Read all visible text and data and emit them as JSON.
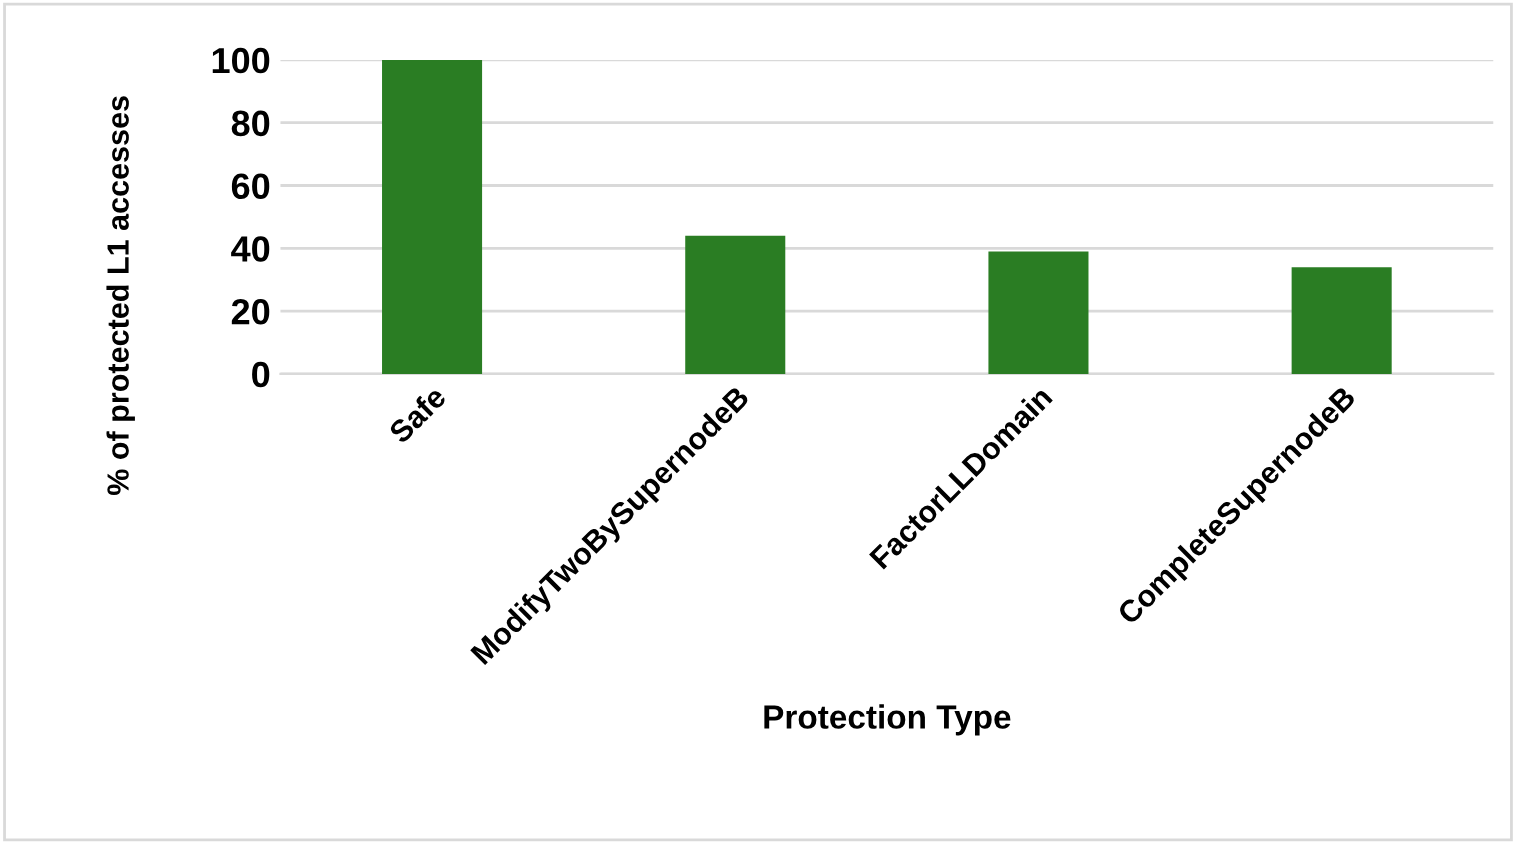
{
  "chart_data": {
    "type": "bar",
    "xlabel": "Protection Type",
    "ylabel": "% of protected L1 accesses",
    "categories": [
      "Safe",
      "ModifyTwoBySupernodeB",
      "FactorLLDomain",
      "CompleteSupernodeB"
    ],
    "values": [
      100,
      44,
      39,
      34
    ],
    "color": "#2a7d23",
    "ylim": [
      0,
      100
    ],
    "yticks": [
      0,
      20,
      40,
      60,
      80,
      100
    ],
    "grid": "y"
  }
}
